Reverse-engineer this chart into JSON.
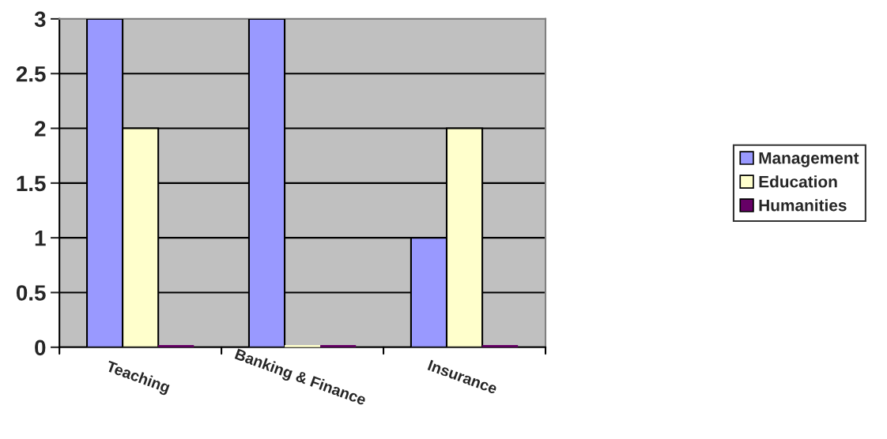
{
  "chart_data": {
    "type": "bar",
    "categories": [
      "Teaching",
      "Banking & Finance",
      "Insurance"
    ],
    "series": [
      {
        "name": "Management",
        "color": "#9999ff",
        "values": [
          3,
          3,
          1
        ]
      },
      {
        "name": "Education",
        "color": "#ffffcc",
        "values": [
          2,
          0,
          2
        ]
      },
      {
        "name": "Humanities",
        "color": "#660066",
        "values": [
          0,
          0,
          0
        ]
      }
    ],
    "ylim": [
      0,
      3
    ],
    "yticks": [
      0,
      0.5,
      1,
      1.5,
      2,
      2.5,
      3
    ],
    "grid": "y",
    "legend": "right"
  }
}
